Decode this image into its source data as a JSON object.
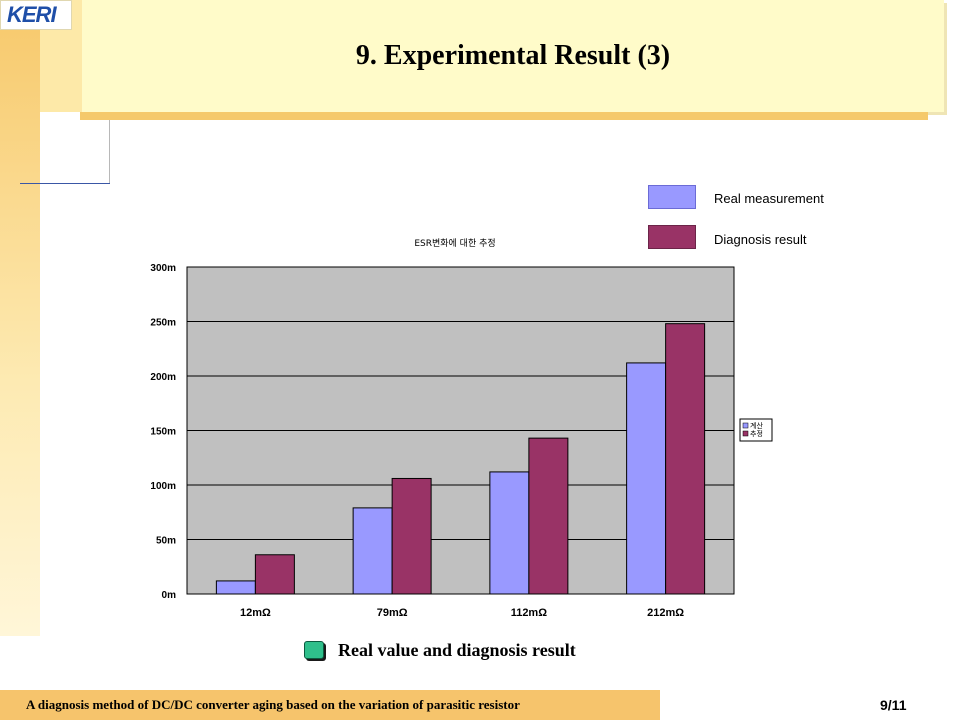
{
  "logo_text": "KERI",
  "title": "9. Experimental Result (3)",
  "legend": [
    {
      "label": "Real measurement",
      "color": "#9999ff"
    },
    {
      "label": "Diagnosis result",
      "color": "#993366"
    }
  ],
  "caption": "Real value and diagnosis result",
  "footer_text": "A diagnosis method of DC/DC converter aging based on the variation of parasitic resistor",
  "page_number": "9/11",
  "chart_data": {
    "type": "bar",
    "title": "ESR변화에 대한 추정",
    "categories": [
      "12mΩ",
      "79mΩ",
      "112mΩ",
      "212mΩ"
    ],
    "series": [
      {
        "name": "계산",
        "values": [
          12,
          79,
          112,
          212
        ],
        "color": "#9999ff"
      },
      {
        "name": "추정",
        "values": [
          36,
          106,
          143,
          248
        ],
        "color": "#993366"
      }
    ],
    "ylim": [
      0,
      300
    ],
    "yticks": [
      0,
      50,
      100,
      150,
      200,
      250,
      300
    ],
    "ytick_labels": [
      "0m",
      "50m",
      "100m",
      "150m",
      "200m",
      "250m",
      "300m"
    ],
    "grid": true,
    "plot_background": "#c0c0c0",
    "legend_position": "right"
  }
}
